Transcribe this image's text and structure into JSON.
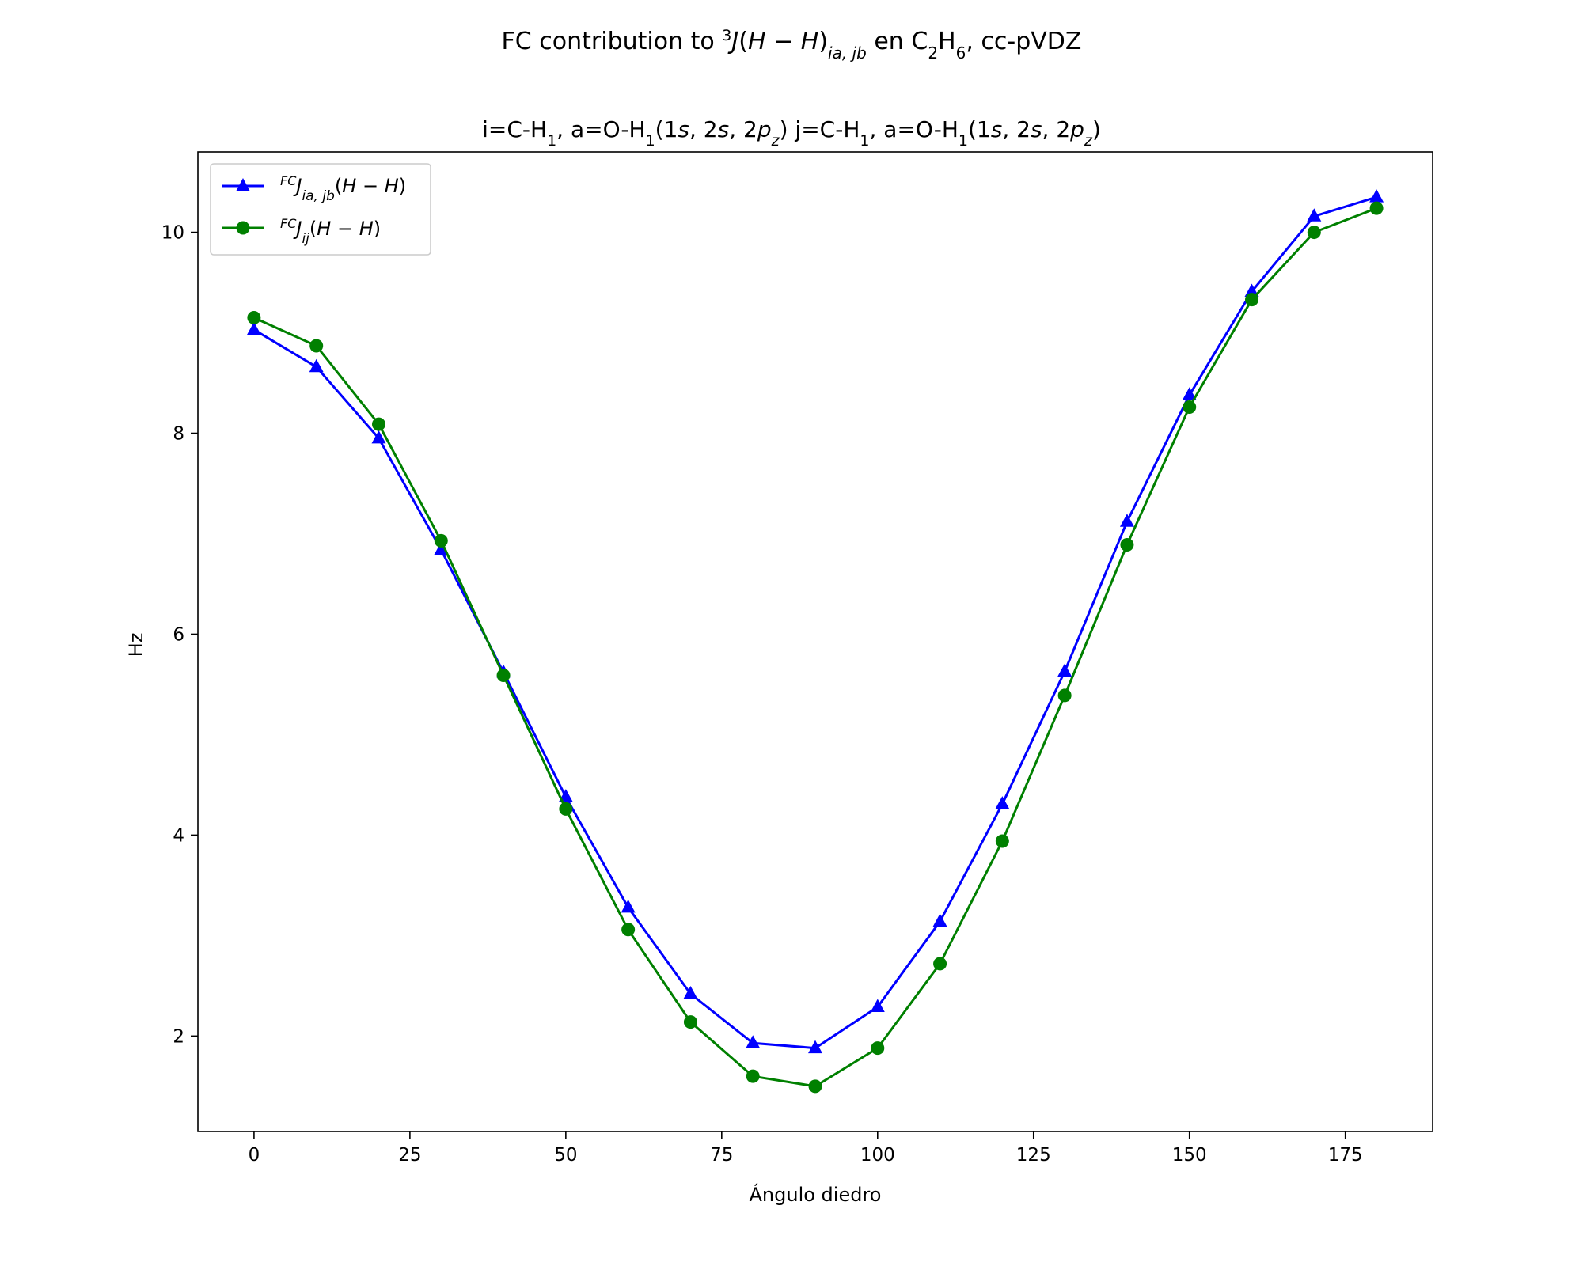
{
  "figure": {
    "suptitle": "FC contribution to ³J(H − H)ia,jb en C₂H₆, cc-pVDZ",
    "title": "i=C-H₁, a=O-H₁(1s, 2s, 2pz) j=C-H₁, a=O-H₁(1s, 2s, 2pz)"
  },
  "chart_data": {
    "type": "line",
    "title": "i=C-H₁, a=O-H₁(1s, 2s, 2pz) j=C-H₁, a=O-H₁(1s, 2s, 2pz)",
    "xlabel": "Ángulo diedro",
    "ylabel": "Hz",
    "xlim": [
      -9,
      189
    ],
    "ylim": [
      1.05,
      10.8
    ],
    "xticks": [
      0,
      25,
      50,
      75,
      100,
      125,
      150,
      175
    ],
    "yticks": [
      2,
      4,
      6,
      8,
      10
    ],
    "grid": false,
    "legend_position": "upper-left",
    "x": [
      0,
      10,
      20,
      30,
      40,
      50,
      60,
      70,
      80,
      90,
      100,
      110,
      120,
      130,
      140,
      150,
      160,
      170,
      180
    ],
    "series": [
      {
        "name": "FCJia,jb(H − H)",
        "color": "#0000ff",
        "marker": "triangle",
        "values": [
          9.03,
          8.66,
          7.95,
          6.84,
          5.62,
          4.38,
          3.28,
          2.42,
          1.93,
          1.88,
          2.29,
          3.14,
          4.31,
          5.63,
          7.12,
          8.38,
          9.41,
          10.16,
          10.35
        ]
      },
      {
        "name": "FCJij(H − H)",
        "color": "#008000",
        "marker": "circle",
        "values": [
          9.15,
          8.87,
          8.09,
          6.93,
          5.59,
          4.26,
          3.06,
          2.14,
          1.6,
          1.5,
          1.88,
          2.72,
          3.94,
          5.39,
          6.89,
          8.26,
          9.33,
          10.0,
          10.24
        ]
      }
    ]
  }
}
